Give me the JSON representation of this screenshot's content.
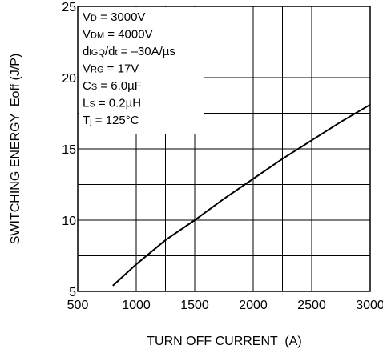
{
  "chart_data": {
    "type": "line",
    "x_label": "TURN OFF CURRENT  (A)",
    "y_label": "SWITCHING ENERGY  Eoff (J/P)",
    "annotations": [
      [
        "V",
        "D",
        " = 3000V"
      ],
      [
        "V",
        "DM",
        " = 4000V"
      ],
      [
        "d",
        "iGQ",
        "/d",
        "t",
        " = –30A/µs"
      ],
      [
        "V",
        "RG",
        " = 17V"
      ],
      [
        "C",
        "S",
        " = 6.0µF"
      ],
      [
        "L",
        "S",
        " = 0.2µH"
      ],
      [
        "T",
        "j",
        " = 125°C"
      ]
    ],
    "x": [
      800,
      1000,
      1250,
      1500,
      1750,
      2000,
      2250,
      2500,
      2750,
      3000
    ],
    "series": [
      {
        "color": "#000000",
        "values": [
          5.4,
          6.9,
          8.6,
          10.0,
          11.5,
          12.9,
          14.3,
          15.6,
          16.9,
          18.1
        ]
      }
    ],
    "xlim": [
      500,
      3000
    ],
    "ylim": [
      5,
      25
    ],
    "xticks": [
      500,
      1000,
      1500,
      2000,
      2500,
      3000
    ],
    "yticks": [
      5,
      10,
      15,
      20,
      25
    ],
    "x_minor_ticks": [
      750,
      1250,
      1750,
      2250,
      2750
    ],
    "y_minor_ticks": [
      7.5,
      12.5,
      17.5,
      22.5
    ],
    "grid": true
  }
}
